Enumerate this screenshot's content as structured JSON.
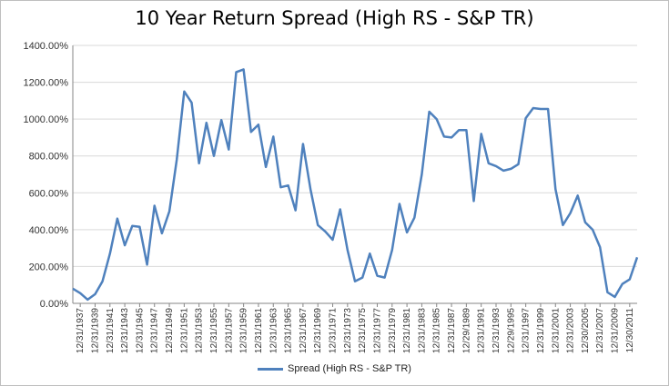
{
  "chart_data": {
    "type": "line",
    "title": "10 Year Return Spread (High RS - S&P TR)",
    "xlabel": "",
    "ylabel": "",
    "ylim": [
      0,
      1400
    ],
    "y_ticks": [
      "0.00%",
      "200.00%",
      "400.00%",
      "600.00%",
      "800.00%",
      "1000.00%",
      "1200.00%",
      "1400.00%"
    ],
    "grid": true,
    "legend_position": "bottom",
    "color": "#4f81bd",
    "x_tick_labels": [
      "12/31/1937",
      "12/31/1939",
      "12/31/1941",
      "12/31/1943",
      "12/31/1945",
      "12/31/1947",
      "12/31/1949",
      "12/31/1951",
      "12/31/1953",
      "12/31/1955",
      "12/31/1957",
      "12/31/1959",
      "12/31/1961",
      "12/31/1963",
      "12/31/1965",
      "12/31/1967",
      "12/31/1969",
      "12/31/1971",
      "12/31/1973",
      "12/31/1975",
      "12/31/1977",
      "12/31/1979",
      "12/31/1981",
      "12/31/1983",
      "12/31/1985",
      "12/31/1987",
      "12/29/1989",
      "12/31/1991",
      "12/31/1993",
      "12/29/1995",
      "12/31/1997",
      "12/31/1999",
      "12/31/2001",
      "12/31/2003",
      "12/30/2005",
      "12/31/2007",
      "12/31/2009",
      "12/30/2011"
    ],
    "series": [
      {
        "name": "Spread (High RS - S&P TR)",
        "x": [
          1936,
          1937,
          1938,
          1939,
          1940,
          1941,
          1942,
          1943,
          1944,
          1945,
          1946,
          1947,
          1948,
          1949,
          1950,
          1951,
          1952,
          1953,
          1954,
          1955,
          1956,
          1957,
          1958,
          1959,
          1960,
          1961,
          1962,
          1963,
          1964,
          1965,
          1966,
          1967,
          1968,
          1969,
          1970,
          1971,
          1972,
          1973,
          1974,
          1975,
          1976,
          1977,
          1978,
          1979,
          1980,
          1981,
          1982,
          1983,
          1984,
          1985,
          1986,
          1987,
          1988,
          1989,
          1990,
          1991,
          1992,
          1993,
          1994,
          1995,
          1996,
          1997,
          1998,
          1999,
          2000,
          2001,
          2002,
          2003,
          2004,
          2005,
          2006,
          2007,
          2008,
          2009,
          2010,
          2011,
          2012
        ],
        "values": [
          80,
          55,
          20,
          50,
          120,
          270,
          460,
          315,
          420,
          415,
          210,
          530,
          380,
          500,
          780,
          1150,
          1090,
          760,
          980,
          800,
          995,
          835,
          1255,
          1270,
          930,
          970,
          740,
          905,
          630,
          640,
          505,
          865,
          620,
          425,
          390,
          345,
          510,
          290,
          120,
          140,
          270,
          150,
          140,
          290,
          540,
          385,
          465,
          700,
          1040,
          1000,
          905,
          900,
          940,
          940,
          555,
          920,
          760,
          745,
          720,
          730,
          755,
          1005,
          1060,
          1055,
          1055,
          620,
          425,
          490,
          585,
          440,
          400,
          305,
          60,
          35,
          105,
          130,
          250
        ]
      }
    ]
  }
}
